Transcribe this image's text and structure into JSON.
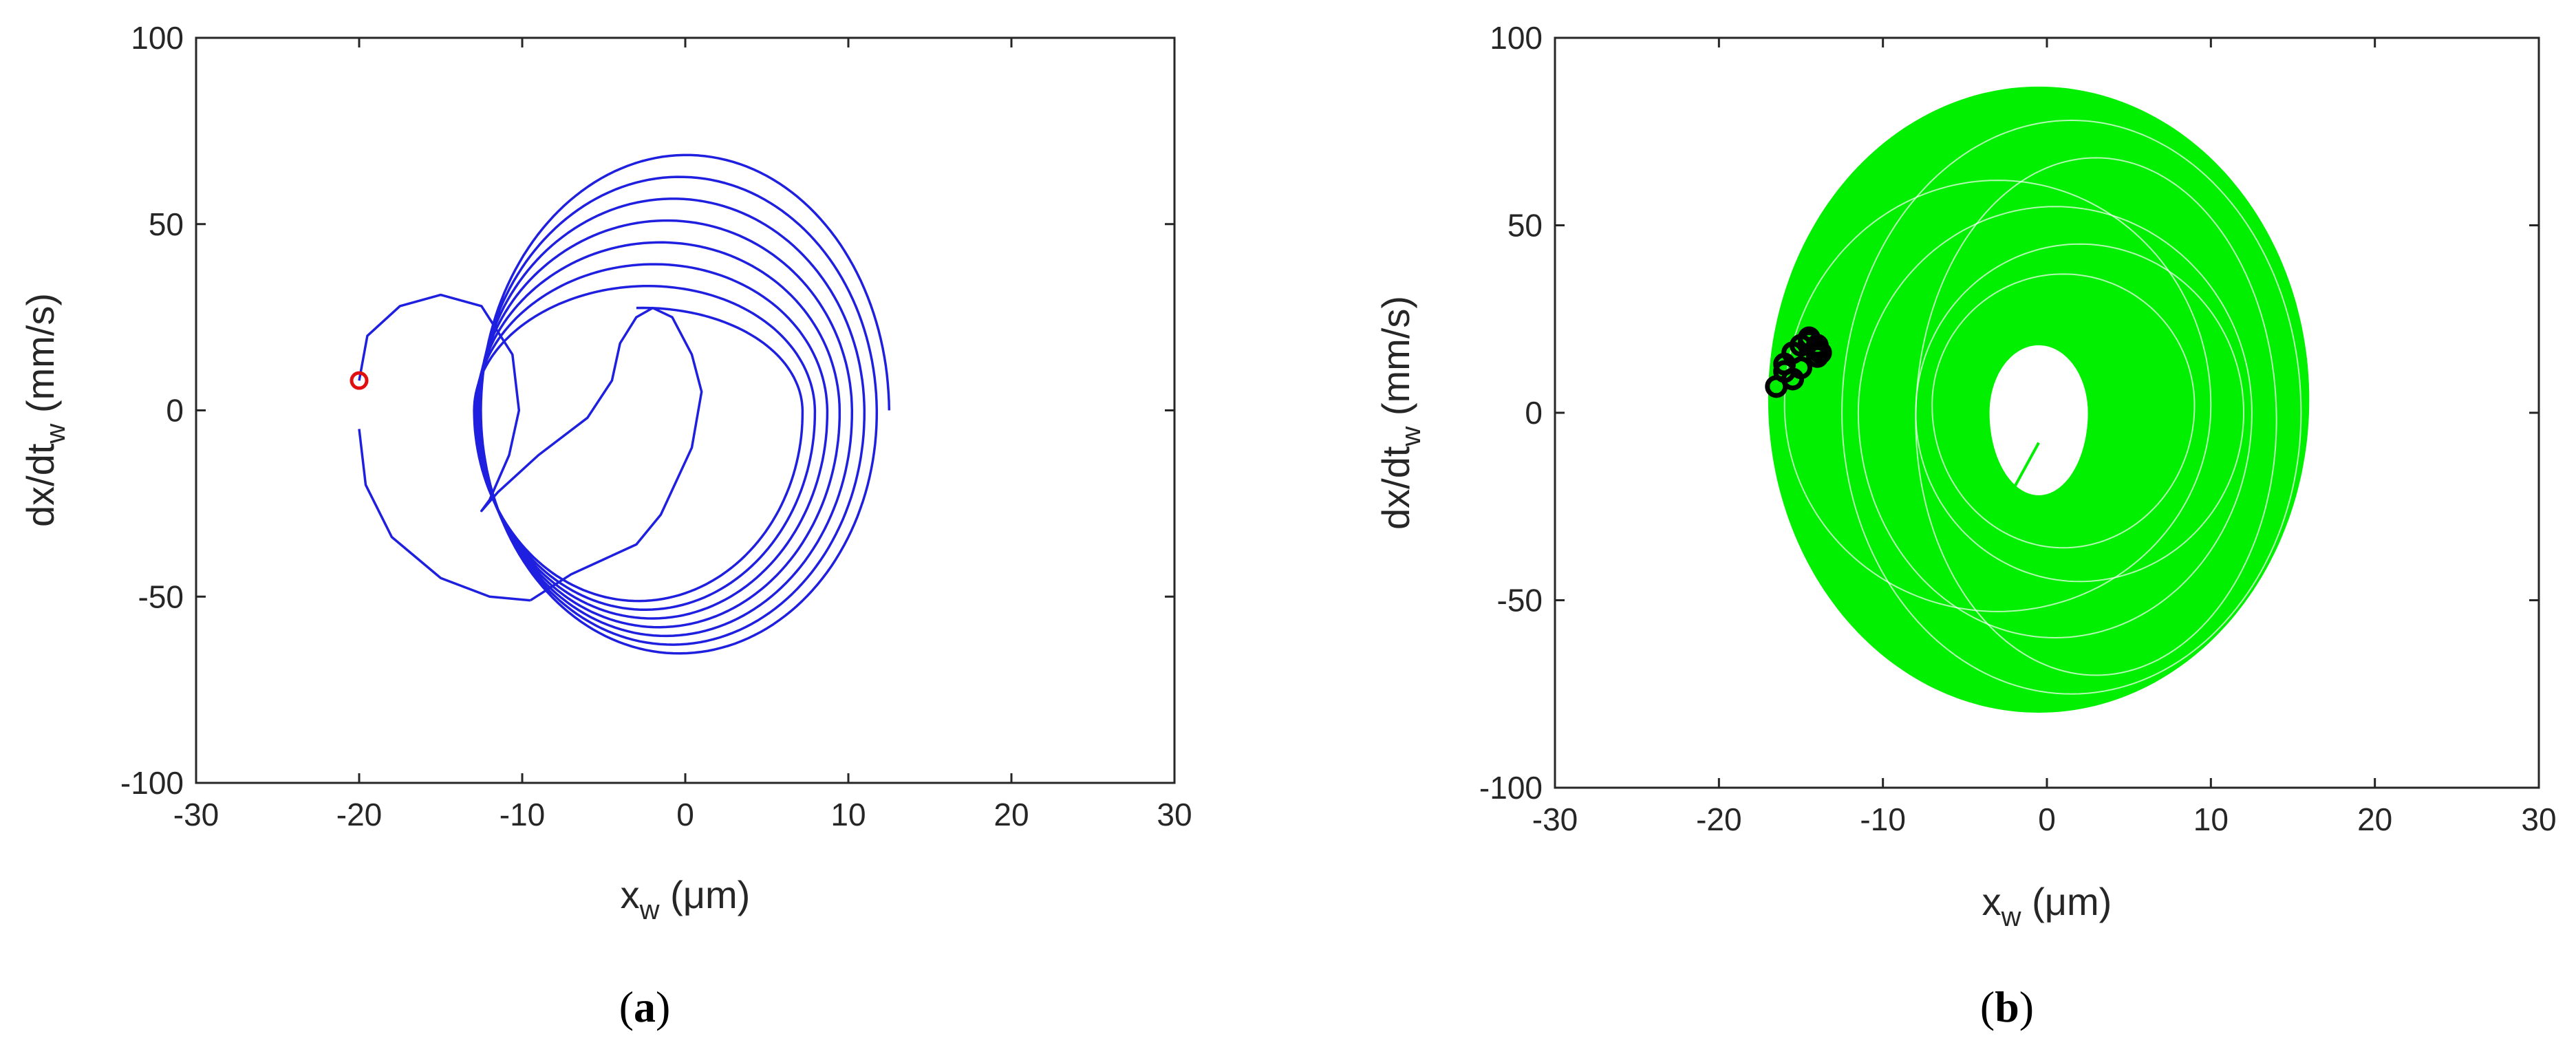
{
  "chart_data": [
    {
      "type": "line",
      "panel": "a",
      "caption": {
        "open": "(",
        "letter": "a",
        "close": ")"
      },
      "xlabel": {
        "main": "x",
        "sub": "w",
        "unit": " (μm)"
      },
      "ylabel": {
        "main": "dx/dt",
        "sub": "w",
        "unit": "  (mm/s)"
      },
      "xlim": [
        -30,
        30
      ],
      "ylim": [
        -100,
        100
      ],
      "xticks": [
        "-30",
        "-20",
        "-10",
        "0",
        "10",
        "20",
        "30"
      ],
      "yticks": [
        "-100",
        "-50",
        "0",
        "50",
        "100"
      ],
      "grid": false,
      "colors": {
        "trajectory": "#1f1fe0",
        "start_marker": "#e01010"
      },
      "series": [
        {
          "kind": "trajectory",
          "transient": [
            [
              -20,
              8
            ],
            [
              -19.5,
              20
            ],
            [
              -17.5,
              28
            ],
            [
              -15,
              31
            ],
            [
              -12.5,
              28
            ],
            [
              -10.6,
              15
            ],
            [
              -10.2,
              0
            ],
            [
              -10.8,
              -12
            ],
            [
              -12,
              -24
            ],
            [
              -12.5,
              -27
            ],
            [
              -11.5,
              -22
            ],
            [
              -9,
              -12
            ],
            [
              -6,
              -2
            ],
            [
              -4.5,
              8
            ],
            [
              -4,
              18
            ],
            [
              -3,
              25
            ],
            [
              -2,
              27.5
            ],
            [
              -0.8,
              25
            ],
            [
              0.4,
              15
            ],
            [
              1,
              5
            ],
            [
              0.4,
              -10
            ],
            [
              -1.5,
              -28
            ],
            [
              -3,
              -36
            ],
            [
              -5,
              -40
            ],
            [
              -7,
              -44
            ],
            [
              -9.5,
              -51
            ]
          ],
          "spiral": {
            "center": [
              0,
              0
            ],
            "turns": 7.25,
            "x_amp_start": 10,
            "x_amp_end": 12.5,
            "y_top_start": 27.5,
            "y_top_end": 70,
            "y_bottom_start": -50,
            "y_bottom_end": -67,
            "x_shift_start": -3,
            "x_shift_end": 0
          },
          "return": [
            [
              -20,
              -5
            ],
            [
              -19.6,
              -20
            ],
            [
              -18,
              -34
            ],
            [
              -15,
              -45
            ],
            [
              -12,
              -50
            ],
            [
              -9.5,
              -51
            ]
          ]
        },
        {
          "kind": "start_marker",
          "points": [
            [
              -20,
              8
            ]
          ]
        }
      ]
    },
    {
      "type": "line",
      "panel": "b",
      "caption": {
        "open": "(",
        "letter": "b",
        "close": ")"
      },
      "xlabel": {
        "main": "x",
        "sub": "w",
        "unit": " (μm)"
      },
      "ylabel": {
        "main": "dx/dt",
        "sub": "w",
        "unit": "  (mm/s)"
      },
      "xlim": [
        -30,
        30
      ],
      "ylim": [
        -100,
        100
      ],
      "xticks": [
        "-30",
        "-20",
        "-10",
        "0",
        "10",
        "20",
        "30"
      ],
      "yticks": [
        "-100",
        "-50",
        "0",
        "50",
        "100"
      ],
      "grid": false,
      "colors": {
        "trajectory": "#00f000",
        "markers": "#000000"
      },
      "series": [
        {
          "kind": "trajectory_band",
          "outer": {
            "x_min": -17,
            "x_max": 16,
            "y_min": -80,
            "y_max": 87
          },
          "inner_hole": {
            "center": [
              -0.5,
              0
            ],
            "x_radius": 3,
            "y_top": 18,
            "y_bottom": -22
          },
          "inner_tail": [
            [
              -2,
              -20
            ],
            [
              -0.5,
              -8
            ]
          ]
        },
        {
          "kind": "markers",
          "points": [
            [
              -16.5,
              7
            ],
            [
              -16,
              11
            ],
            [
              -16,
              13
            ],
            [
              -15.5,
              16
            ],
            [
              -15,
              18
            ],
            [
              -14.5,
              19
            ],
            [
              -14.5,
              20
            ],
            [
              -14,
              18
            ],
            [
              -14,
              15
            ],
            [
              -15,
              12
            ],
            [
              -15.5,
              9
            ],
            [
              -14,
              17
            ],
            [
              -13.8,
              16
            ]
          ]
        }
      ]
    }
  ]
}
